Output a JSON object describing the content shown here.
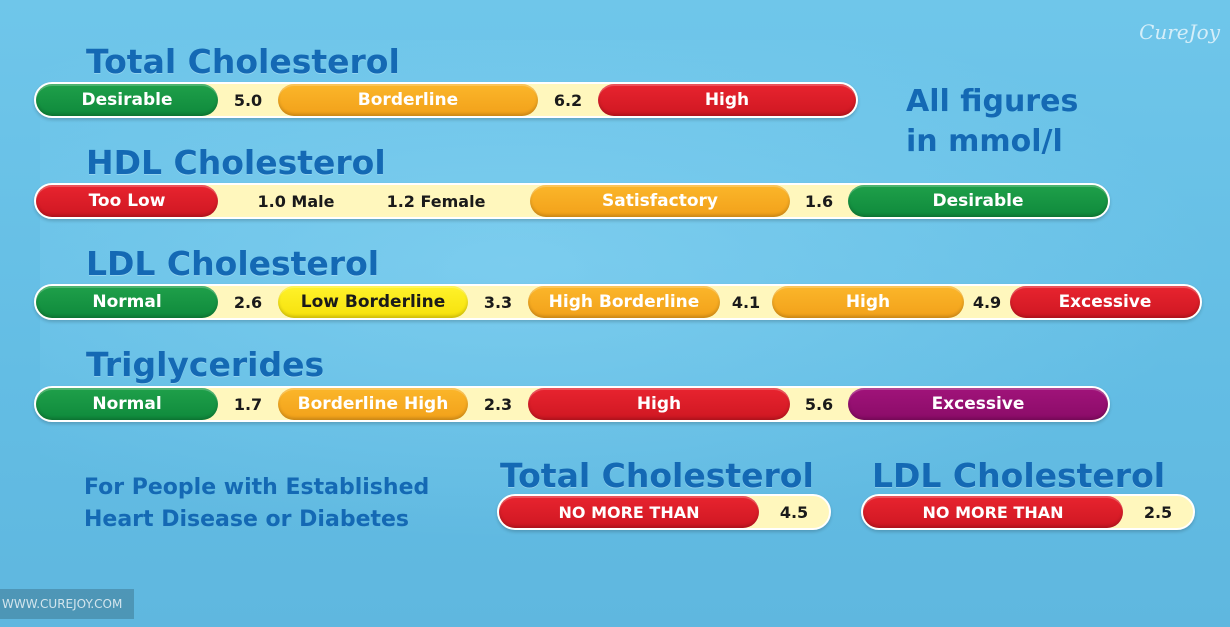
{
  "brand": {
    "logo": "CureJoy",
    "watermark": "WWW.CUREJOY.COM"
  },
  "units_note": {
    "line1": "All figures",
    "line2": "in mmol/l"
  },
  "total": {
    "title": "Total Cholesterol",
    "segments": [
      "Desirable",
      "Borderline",
      "High"
    ],
    "thresholds": [
      "5.0",
      "6.2"
    ]
  },
  "hdl": {
    "title": "HDL Cholesterol",
    "segments": [
      "Too Low",
      "Satisfactory",
      "Desirable"
    ],
    "thresholds": [
      "1.0 Male",
      "1.2 Female",
      "1.6"
    ]
  },
  "ldl": {
    "title": "LDL Cholesterol",
    "segments": [
      "Normal",
      "Low Borderline",
      "High Borderline",
      "High",
      "Excessive"
    ],
    "thresholds": [
      "2.6",
      "3.3",
      "4.1",
      "4.9"
    ]
  },
  "trig": {
    "title": "Triglycerides",
    "segments": [
      "Normal",
      "Borderline High",
      "High",
      "Excessive"
    ],
    "thresholds": [
      "1.7",
      "2.3",
      "5.6"
    ]
  },
  "established": {
    "note_line1": "For People with Established",
    "note_line2": "Heart Disease or Diabetes",
    "total_title": "Total Cholesterol",
    "total_label": "NO MORE THAN",
    "total_value": "4.5",
    "ldl_title": "LDL Cholesterol",
    "ldl_label": "NO MORE THAN",
    "ldl_value": "2.5"
  },
  "colors": {
    "green": "#0f8a3c",
    "orange": "#f2a11a",
    "red": "#cf1722",
    "yellow": "#f6e10c",
    "purple": "#8b0c68",
    "title_blue": "#1469b4"
  }
}
